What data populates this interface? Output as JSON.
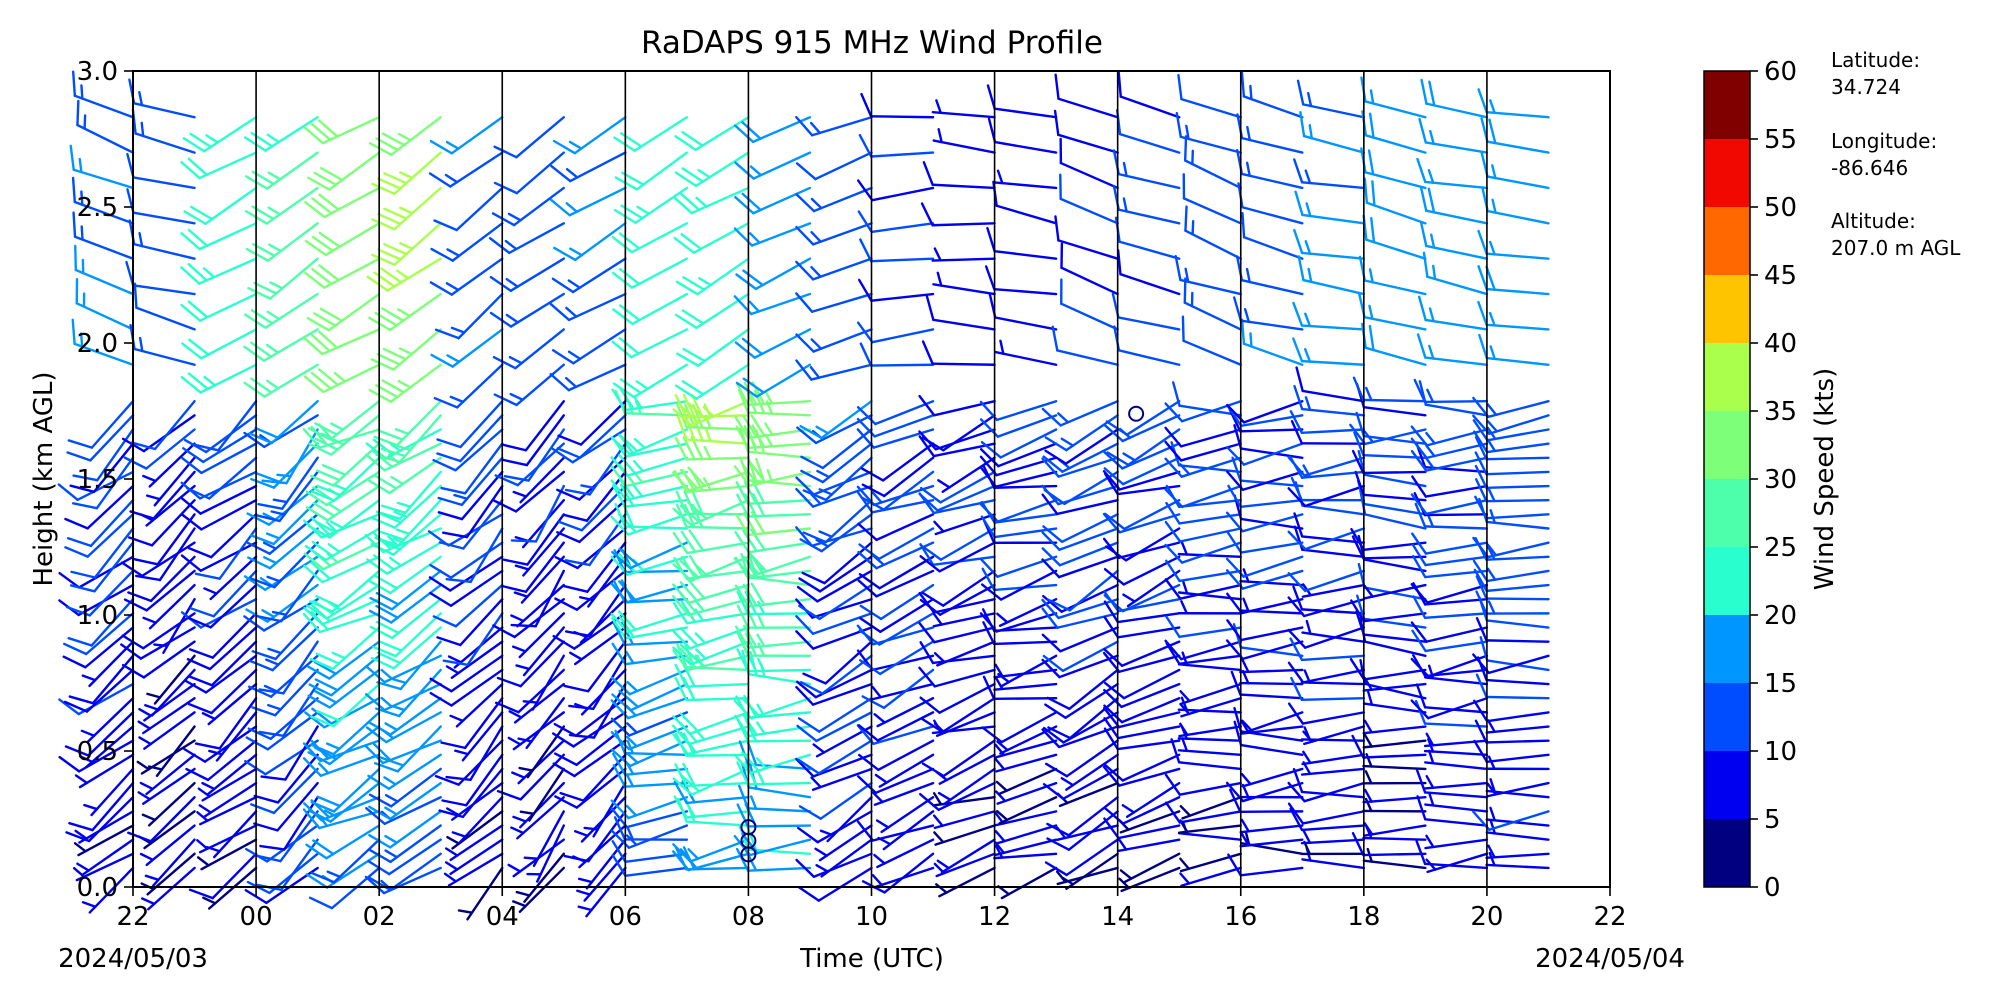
{
  "chart_data": {
    "type": "wind_barbs",
    "title": "RaDAPS 915 MHz Wind Profile",
    "xlabel": "Time (UTC)",
    "ylabel": "Height (km AGL)",
    "x_tick_labels": [
      "22",
      "00",
      "02",
      "04",
      "06",
      "08",
      "10",
      "12",
      "14",
      "16",
      "18",
      "20",
      "22"
    ],
    "x_tick_hours": [
      22,
      24,
      26,
      28,
      30,
      32,
      34,
      36,
      38,
      40,
      42,
      44,
      46
    ],
    "xlim_hours": [
      22,
      46
    ],
    "start_date": "2024/05/03",
    "end_date": "2024/05/04",
    "y_ticks": [
      0.0,
      0.5,
      1.0,
      1.5,
      2.0,
      2.5,
      3.0
    ],
    "y_tick_labels": [
      "0.0",
      "0.5",
      "1.0",
      "1.5",
      "2.0",
      "2.5",
      "3.0"
    ],
    "ylim": [
      0.0,
      3.0
    ],
    "profile_separator_hours": [
      24,
      26,
      28,
      30,
      32,
      34,
      36,
      38,
      40,
      42,
      44
    ],
    "colorbar": {
      "label": "Wind Speed (kts)",
      "boundaries": [
        0,
        5,
        10,
        15,
        20,
        25,
        30,
        35,
        40,
        45,
        50,
        55,
        60
      ],
      "tick_labels": [
        "0",
        "5",
        "10",
        "15",
        "20",
        "25",
        "30",
        "35",
        "40",
        "45",
        "50",
        "55",
        "60"
      ],
      "colors": [
        "#000080",
        "#0000f1",
        "#004dff",
        "#0096ff",
        "#29ffce",
        "#4dffaa",
        "#7dff7a",
        "#aaff4d",
        "#ffc400",
        "#ff6800",
        "#f10800",
        "#800000"
      ]
    },
    "station": {
      "latitude_label": "Latitude:",
      "latitude": "34.724",
      "longitude_label": "Longitude:",
      "longitude": "-86.646",
      "altitude_label": "Altitude:",
      "altitude": "207.0 m AGL"
    },
    "profiles": [
      {
        "hour": 22.0,
        "low_speed": 10,
        "high_speed": 15,
        "low_dir": 230,
        "high_dir": 290
      },
      {
        "hour": 23.0,
        "low_speed": 8,
        "high_speed": 13,
        "low_dir": 225,
        "high_dir": 285
      },
      {
        "hour": 24.0,
        "low_speed": 10,
        "high_speed": 22,
        "low_dir": 230,
        "high_dir": 240
      },
      {
        "hour": 25.0,
        "low_speed": 15,
        "high_speed": 25,
        "low_dir": 225,
        "high_dir": 235
      },
      {
        "hour": 26.0,
        "low_speed": 25,
        "high_speed": 32,
        "low_dir": 240,
        "high_dir": 240
      },
      {
        "hour": 27.0,
        "low_speed": 22,
        "high_speed": 35,
        "low_dir": 235,
        "high_dir": 235
      },
      {
        "hour": 28.0,
        "low_speed": 10,
        "high_speed": 14,
        "low_dir": 225,
        "high_dir": 230
      },
      {
        "hour": 29.0,
        "low_speed": 8,
        "high_speed": 13,
        "low_dir": 220,
        "high_dir": 235
      },
      {
        "hour": 30.0,
        "low_speed": 10,
        "high_speed": 15,
        "low_dir": 225,
        "high_dir": 240
      },
      {
        "hour": 31.0,
        "low_speed": 22,
        "high_speed": 22,
        "low_dir": 260,
        "high_dir": 240
      },
      {
        "hour": 32.0,
        "low_speed": 30,
        "high_speed": 22,
        "low_dir": 260,
        "high_dir": 240
      },
      {
        "hour": 33.0,
        "low_speed": 30,
        "high_speed": 18,
        "low_dir": 265,
        "high_dir": 245
      },
      {
        "hour": 34.0,
        "low_speed": 12,
        "high_speed": 13,
        "low_dir": 240,
        "high_dir": 250
      },
      {
        "hour": 35.0,
        "low_speed": 11,
        "high_speed": 10,
        "low_dir": 245,
        "high_dir": 265
      },
      {
        "hour": 36.0,
        "low_speed": 9,
        "high_speed": 8,
        "low_dir": 250,
        "high_dir": 275
      },
      {
        "hour": 37.0,
        "low_speed": 9,
        "high_speed": 8,
        "low_dir": 255,
        "high_dir": 280
      },
      {
        "hour": 38.0,
        "low_speed": 10,
        "high_speed": 10,
        "low_dir": 245,
        "high_dir": 290
      },
      {
        "hour": 39.0,
        "low_speed": 10,
        "high_speed": 11,
        "low_dir": 250,
        "high_dir": 285
      },
      {
        "hour": 40.0,
        "low_speed": 10,
        "high_speed": 12,
        "low_dir": 265,
        "high_dir": 290
      },
      {
        "hour": 41.0,
        "low_speed": 10,
        "high_speed": 14,
        "low_dir": 265,
        "high_dir": 285
      },
      {
        "hour": 42.0,
        "low_speed": 10,
        "high_speed": 16,
        "low_dir": 265,
        "high_dir": 280
      },
      {
        "hour": 43.0,
        "low_speed": 10,
        "high_speed": 18,
        "low_dir": 270,
        "high_dir": 285
      },
      {
        "hour": 44.0,
        "low_speed": 11,
        "high_speed": 17,
        "low_dir": 265,
        "high_dir": 280
      },
      {
        "hour": 45.0,
        "low_speed": 12,
        "high_speed": 17,
        "low_dir": 265,
        "high_dir": 280
      }
    ],
    "level_heights_km": {
      "low_start": 0.07,
      "low_end": 1.8,
      "low_step": 0.052,
      "high_start": 1.92,
      "high_end": 2.95,
      "high_step": 0.13
    },
    "calm_markers": [
      {
        "hour": 32.0,
        "height_km": 0.12
      },
      {
        "hour": 32.0,
        "height_km": 0.17
      },
      {
        "hour": 32.0,
        "height_km": 0.22
      },
      {
        "hour": 38.3,
        "height_km": 1.74
      }
    ]
  }
}
